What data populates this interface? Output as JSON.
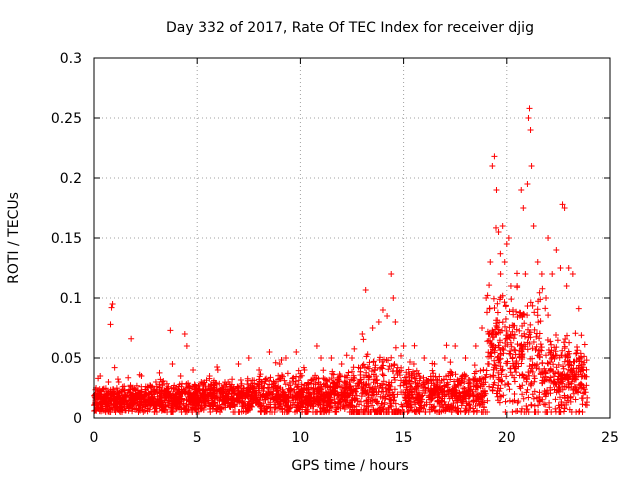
{
  "chart_data": {
    "type": "scatter",
    "title": "Day 332 of 2017, Rate Of TEC Index for receiver djig",
    "xlabel": "GPS time / hours",
    "ylabel": "ROTI / TECUs",
    "xlim": [
      0,
      25
    ],
    "ylim": [
      0,
      0.3
    ],
    "xticks": [
      0,
      5,
      10,
      15,
      20,
      25
    ],
    "yticks": [
      0,
      0.05,
      0.1,
      0.15,
      0.2,
      0.25,
      0.3
    ],
    "xtick_labels": [
      "0",
      "5",
      "10",
      "15",
      "20",
      "25"
    ],
    "ytick_labels": [
      "0",
      "0.05",
      "0.1",
      "0.15",
      "0.2",
      "0.25",
      "0.3"
    ],
    "grid": true,
    "marker": "+",
    "color": "#ff0000",
    "series": [
      {
        "name": "ROTI",
        "x": [
          0.1,
          0.2,
          0.3,
          0.5,
          0.7,
          0.8,
          0.85,
          0.9,
          1.0,
          1.2,
          1.5,
          1.8,
          2.0,
          2.3,
          2.6,
          3.0,
          3.3,
          3.7,
          3.8,
          4.2,
          4.4,
          4.5,
          4.8,
          5.2,
          5.6,
          6.0,
          6.5,
          7.0,
          7.5,
          8.0,
          8.5,
          9.0,
          9.3,
          9.8,
          10.2,
          10.8,
          11.0,
          11.5,
          12.0,
          12.5,
          13.0,
          13.5,
          13.8,
          14.0,
          14.2,
          14.4,
          14.5,
          14.6,
          15.0,
          15.5,
          16.0,
          16.5,
          17.0,
          17.5,
          18.0,
          18.5,
          18.8,
          19.0,
          19.2,
          19.3,
          19.4,
          19.5,
          19.6,
          19.7,
          19.8,
          19.9,
          20.0,
          20.1,
          20.2,
          20.3,
          20.5,
          20.7,
          20.8,
          20.9,
          21.0,
          21.05,
          21.1,
          21.15,
          21.2,
          21.3,
          21.5,
          21.7,
          21.9,
          22.0,
          22.2,
          22.4,
          22.6,
          22.7,
          22.8,
          22.9,
          23.0,
          23.2,
          23.5,
          23.7
        ],
        "y": [
          0.025,
          0.033,
          0.035,
          0.02,
          0.03,
          0.078,
          0.092,
          0.095,
          0.042,
          0.03,
          0.02,
          0.066,
          0.018,
          0.035,
          0.025,
          0.03,
          0.03,
          0.073,
          0.045,
          0.035,
          0.07,
          0.06,
          0.04,
          0.03,
          0.035,
          0.04,
          0.03,
          0.045,
          0.05,
          0.04,
          0.055,
          0.045,
          0.05,
          0.055,
          0.04,
          0.06,
          0.05,
          0.05,
          0.045,
          0.05,
          0.07,
          0.075,
          0.08,
          0.09,
          0.085,
          0.12,
          0.1,
          0.08,
          0.06,
          0.045,
          0.05,
          0.045,
          0.05,
          0.06,
          0.05,
          0.06,
          0.075,
          0.1,
          0.13,
          0.21,
          0.218,
          0.19,
          0.155,
          0.12,
          0.16,
          0.13,
          0.145,
          0.15,
          0.11,
          0.09,
          0.11,
          0.19,
          0.175,
          0.12,
          0.195,
          0.25,
          0.258,
          0.24,
          0.21,
          0.16,
          0.13,
          0.12,
          0.1,
          0.15,
          0.12,
          0.14,
          0.125,
          0.178,
          0.175,
          0.11,
          0.125,
          0.12,
          0.05,
          0.04
        ]
      }
    ]
  }
}
